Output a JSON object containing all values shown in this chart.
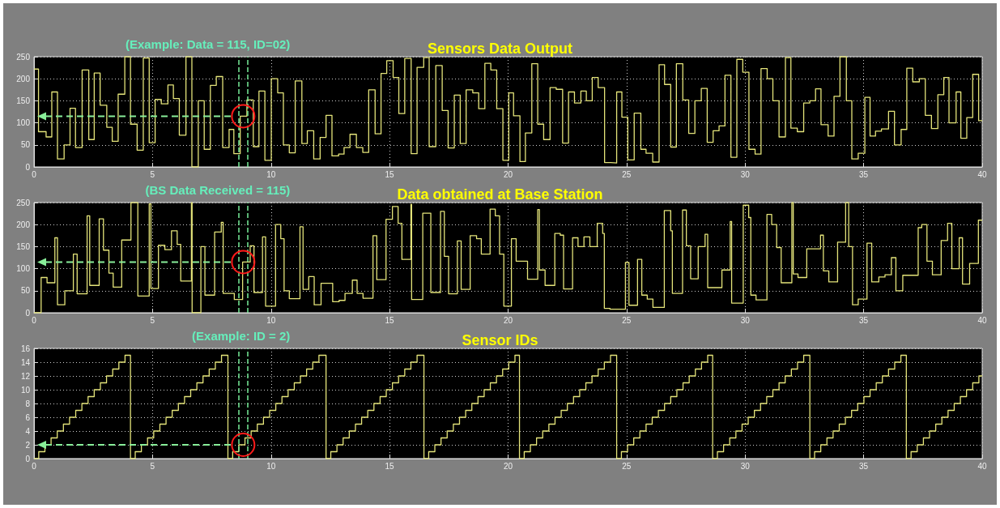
{
  "chart_data": [
    {
      "type": "step",
      "title": "Sensors Data Output",
      "xlim": [
        0,
        40
      ],
      "xticks": [
        0,
        5,
        10,
        15,
        20,
        25,
        30,
        35,
        40
      ],
      "ylim": [
        0,
        250
      ],
      "yticks": [
        0,
        50,
        100,
        150,
        200,
        250
      ],
      "grid": true,
      "marker": "none",
      "annotations": [
        "(Example: Data = 115,  ID=02)"
      ],
      "ref_lines": [
        {
          "axis": "x",
          "value": 8.65,
          "color": "#77ee99",
          "line_style": "dashed"
        },
        {
          "axis": "x",
          "value": 9.0,
          "color": "#77ee99",
          "line_style": "dashed"
        }
      ],
      "series": [
        {
          "color": "#e4e47a",
          "x": [
            0,
            0.19,
            0.51,
            0.75,
            0.99,
            1.27,
            1.52,
            1.75,
            2.03,
            2.31,
            2.54,
            2.79,
            3.07,
            3.3,
            3.55,
            3.83,
            4.07,
            4.35,
            4.61,
            4.86,
            5.11,
            5.37,
            5.65,
            5.88,
            6.13,
            6.41,
            6.66,
            6.93,
            7.18,
            7.44,
            7.69,
            7.96,
            8.23,
            8.43,
            8.7,
            8.98,
            9.25,
            9.49,
            9.74,
            10.01,
            10.28,
            10.52,
            10.77,
            11.02,
            11.3,
            11.53,
            11.8,
            12.07,
            12.32,
            12.57,
            12.85,
            13.08,
            13.33,
            13.6,
            13.87,
            14.12,
            14.39,
            14.64,
            14.88,
            15.15,
            15.39,
            15.64,
            15.91,
            16.16,
            16.44,
            16.67,
            16.95,
            17.22,
            17.47,
            17.73,
            17.98,
            18.23,
            18.51,
            18.76,
            19.02,
            19.27,
            19.52,
            19.78,
            20.03,
            20.23,
            20.5,
            20.73,
            21.0,
            21.25,
            21.5,
            21.77,
            22.03,
            22.3,
            22.55,
            22.8,
            23.07,
            23.3,
            23.55,
            23.8,
            24.07,
            24.33,
            24.58,
            24.8,
            25.05,
            25.32,
            25.6,
            25.82,
            26.1,
            26.37,
            26.6,
            26.86,
            27.1,
            27.37,
            27.62,
            27.88,
            28.15,
            28.4,
            28.65,
            28.9,
            29.15,
            29.4,
            29.65,
            29.9,
            30.16,
            30.42,
            30.67,
            30.93,
            31.17,
            31.43,
            31.7,
            31.93,
            32.2,
            32.47,
            32.73,
            32.97,
            33.2,
            33.5,
            33.75,
            34.0,
            34.27,
            34.5,
            34.77,
            35.05,
            35.27,
            35.5,
            35.75,
            36.05,
            36.3,
            36.58,
            36.82,
            37.07,
            37.35,
            37.6,
            37.86,
            38.13,
            38.38,
            38.6,
            38.9,
            39.1,
            39.35,
            39.6,
            39.85,
            40
          ],
          "values": [
            222,
            80,
            68,
            170,
            18,
            50,
            133,
            44,
            220,
            62,
            213,
            140,
            90,
            58,
            165,
            250,
            97,
            38,
            247,
            55,
            153,
            143,
            186,
            155,
            72,
            250,
            0,
            150,
            40,
            185,
            205,
            44,
            85,
            30,
            115,
            152,
            46,
            172,
            15,
            200,
            168,
            50,
            32,
            195,
            53,
            82,
            18,
            67,
            117,
            25,
            29,
            44,
            74,
            44,
            33,
            175,
            75,
            212,
            241,
            203,
            121,
            246,
            30,
            226,
            248,
            46,
            230,
            128,
            43,
            163,
            53,
            175,
            168,
            132,
            235,
            220,
            132,
            15,
            168,
            116,
            12,
            77,
            234,
            97,
            62,
            180,
            176,
            54,
            170,
            145,
            172,
            150,
            203,
            180,
            10,
            9,
            170,
            113,
            16,
            122,
            40,
            31,
            11,
            232,
            187,
            45,
            234,
            152,
            76,
            150,
            178,
            56,
            82,
            93,
            208,
            22,
            244,
            215,
            40,
            29,
            223,
            200,
            150,
            68,
            248,
            88,
            80,
            145,
            150,
            177,
            96,
            70,
            160,
            250,
            150,
            18,
            31,
            158,
            70,
            81,
            86,
            126,
            50,
            85,
            224,
            193,
            200,
            117,
            87,
            164,
            203,
            100,
            170,
            65,
            112,
            210,
            105,
            105
          ]
        }
      ]
    },
    {
      "type": "step",
      "title": "Data obtained at Base Station",
      "xlim": [
        0,
        40
      ],
      "xticks": [
        0,
        5,
        10,
        15,
        20,
        25,
        30,
        35,
        40
      ],
      "ylim": [
        0,
        250
      ],
      "yticks": [
        0,
        50,
        100,
        150,
        200,
        250
      ],
      "grid": true,
      "marker": "none",
      "annotations": [
        "(BS Data Received = 115)"
      ],
      "ref_lines": [
        {
          "axis": "x",
          "value": 8.65,
          "color": "#77ee99",
          "line_style": "dashed"
        },
        {
          "axis": "x",
          "value": 9.0,
          "color": "#77ee99",
          "line_style": "dashed"
        }
      ],
      "series": [
        {
          "color": "#e4e47a",
          "x": [
            0,
            0.3,
            0.55,
            0.88,
            0.99,
            1.3,
            1.66,
            1.82,
            2.24,
            2.35,
            2.75,
            2.93,
            3.16,
            3.34,
            3.7,
            4.09,
            4.38,
            4.86,
            4.93,
            5.25,
            5.52,
            5.8,
            6.04,
            6.19,
            6.64,
            6.67,
            7.04,
            7.21,
            7.62,
            7.9,
            7.98,
            8.45,
            8.8,
            9.12,
            9.28,
            9.64,
            9.77,
            10.19,
            10.41,
            10.55,
            10.77,
            11.22,
            11.35,
            11.59,
            11.82,
            12.11,
            12.6,
            12.87,
            13.12,
            13.43,
            13.63,
            13.88,
            14.3,
            14.46,
            14.85,
            15.12,
            15.36,
            15.52,
            15.9,
            15.93,
            16.4,
            16.74,
            17.15,
            17.31,
            17.49,
            17.86,
            18.02,
            18.4,
            18.67,
            18.87,
            19.24,
            19.46,
            19.64,
            19.82,
            20.14,
            20.34,
            20.82,
            21.25,
            21.32,
            21.56,
            21.97,
            22.2,
            22.34,
            22.72,
            22.95,
            23.2,
            23.45,
            23.76,
            23.99,
            24.06,
            24.3,
            24.95,
            25.1,
            25.46,
            25.64,
            25.87,
            26.11,
            26.59,
            26.86,
            26.93,
            27.36,
            27.52,
            27.7,
            28.02,
            28.31,
            28.42,
            29.02,
            29.37,
            29.43,
            29.92,
            30.15,
            30.24,
            30.46,
            30.92,
            31.12,
            31.33,
            31.52,
            31.97,
            32.03,
            32.23,
            32.6,
            33.18,
            33.3,
            33.53,
            33.9,
            34.24,
            34.37,
            34.53,
            34.77,
            35.14,
            35.34,
            35.64,
            35.9,
            36.17,
            36.36,
            36.65,
            37.3,
            37.45,
            37.67,
            37.9,
            38.27,
            38.54,
            38.72,
            39.03,
            39.17,
            39.47,
            39.84,
            40
          ],
          "values": [
            0,
            80,
            68,
            170,
            18,
            50,
            133,
            43,
            220,
            62,
            213,
            142,
            90,
            58,
            165,
            250,
            38,
            247,
            55,
            153,
            143,
            186,
            155,
            72,
            250,
            0,
            150,
            40,
            183,
            205,
            44,
            30,
            115,
            152,
            46,
            172,
            15,
            200,
            168,
            50,
            32,
            195,
            53,
            82,
            18,
            67,
            25,
            28,
            44,
            74,
            44,
            33,
            175,
            75,
            212,
            241,
            203,
            121,
            246,
            30,
            226,
            46,
            230,
            128,
            43,
            163,
            53,
            175,
            168,
            133,
            235,
            220,
            133,
            15,
            168,
            117,
            76,
            234,
            97,
            62,
            180,
            176,
            54,
            170,
            150,
            172,
            150,
            203,
            180,
            10,
            8,
            114,
            17,
            121,
            40,
            31,
            12,
            232,
            186,
            44,
            233,
            152,
            77,
            150,
            178,
            57,
            97,
            207,
            22,
            244,
            216,
            40,
            29,
            223,
            200,
            148,
            68,
            250,
            88,
            80,
            145,
            176,
            95,
            70,
            160,
            250,
            150,
            18,
            31,
            158,
            70,
            81,
            86,
            125,
            50,
            85,
            193,
            200,
            117,
            86,
            164,
            203,
            100,
            170,
            65,
            112,
            210,
            210
          ]
        }
      ]
    },
    {
      "type": "step",
      "title": "Sensor IDs",
      "xlim": [
        0,
        40
      ],
      "xticks": [
        0,
        5,
        10,
        15,
        20,
        25,
        30,
        35,
        40
      ],
      "ylim": [
        0,
        16
      ],
      "yticks": [
        0,
        2,
        4,
        6,
        8,
        10,
        12,
        14,
        16
      ],
      "grid": true,
      "marker": "none",
      "annotations": [
        "(Example: ID = 2)"
      ],
      "ref_lines": [
        {
          "axis": "x",
          "value": 8.65,
          "color": "#77ee99",
          "line_style": "dashed"
        },
        {
          "axis": "x",
          "value": 9.0,
          "color": "#77ee99",
          "line_style": "dashed"
        }
      ],
      "series": [
        {
          "color": "#e4e47a",
          "x": [
            0,
            0.2,
            0.46,
            0.72,
            0.98,
            1.24,
            1.5,
            1.76,
            2.02,
            2.28,
            2.54,
            2.8,
            3.06,
            3.32,
            3.58,
            3.84,
            4.07,
            4.27,
            4.53,
            4.79,
            5.05,
            5.31,
            5.57,
            5.83,
            6.09,
            6.35,
            6.61,
            6.87,
            7.13,
            7.39,
            7.65,
            7.91,
            8.18,
            8.38,
            8.64,
            8.9,
            9.16,
            9.42,
            9.68,
            9.94,
            10.2,
            10.46,
            10.72,
            10.98,
            11.24,
            11.5,
            11.76,
            12.02,
            12.32,
            12.52,
            12.78,
            13.04,
            13.3,
            13.56,
            13.82,
            14.08,
            14.34,
            14.6,
            14.86,
            15.12,
            15.38,
            15.64,
            15.9,
            16.16,
            16.45,
            16.65,
            16.91,
            17.17,
            17.43,
            17.69,
            17.95,
            18.21,
            18.47,
            18.73,
            18.99,
            19.25,
            19.51,
            19.77,
            20.03,
            20.29,
            20.48,
            20.68,
            20.94,
            21.2,
            21.46,
            21.72,
            21.98,
            22.24,
            22.5,
            22.76,
            23.02,
            23.28,
            23.54,
            23.8,
            24.06,
            24.32,
            24.58,
            24.78,
            25.04,
            25.3,
            25.56,
            25.82,
            26.08,
            26.34,
            26.6,
            26.86,
            27.12,
            27.38,
            27.64,
            27.9,
            28.16,
            28.42,
            28.63,
            28.83,
            29.09,
            29.35,
            29.61,
            29.87,
            30.13,
            30.39,
            30.65,
            30.91,
            31.17,
            31.43,
            31.69,
            31.95,
            32.21,
            32.47,
            32.73,
            32.93,
            33.19,
            33.45,
            33.71,
            33.97,
            34.23,
            34.49,
            34.75,
            35.01,
            35.27,
            35.53,
            35.79,
            36.05,
            36.31,
            36.57,
            36.8,
            37.0,
            37.26,
            37.52,
            37.78,
            38.04,
            38.3,
            38.56,
            38.82,
            39.08,
            39.34,
            39.6,
            39.86,
            40
          ],
          "values": [
            0,
            1,
            2,
            3,
            4,
            5,
            6,
            7,
            8,
            9,
            10,
            11,
            12,
            13,
            14,
            15,
            0,
            1,
            2,
            3,
            4,
            5,
            6,
            7,
            8,
            9,
            10,
            11,
            12,
            13,
            14,
            15,
            0,
            1,
            2,
            3,
            4,
            5,
            6,
            7,
            8,
            9,
            10,
            11,
            12,
            13,
            14,
            15,
            0,
            1,
            2,
            3,
            4,
            5,
            6,
            7,
            8,
            9,
            10,
            11,
            12,
            13,
            14,
            15,
            0,
            1,
            2,
            3,
            4,
            5,
            6,
            7,
            8,
            9,
            10,
            11,
            12,
            13,
            14,
            15,
            0,
            1,
            2,
            3,
            4,
            5,
            6,
            7,
            8,
            9,
            10,
            11,
            12,
            13,
            14,
            15,
            0,
            1,
            2,
            3,
            4,
            5,
            6,
            7,
            8,
            9,
            10,
            11,
            12,
            13,
            14,
            15,
            0,
            1,
            2,
            3,
            4,
            5,
            6,
            7,
            8,
            9,
            10,
            11,
            12,
            13,
            14,
            15,
            0,
            1,
            2,
            3,
            4,
            5,
            6,
            7,
            8,
            9,
            10,
            11,
            12,
            13,
            14,
            15,
            0,
            1,
            2,
            3,
            4,
            5,
            6,
            7,
            8,
            9,
            10,
            11,
            12,
            12
          ]
        }
      ]
    }
  ]
}
